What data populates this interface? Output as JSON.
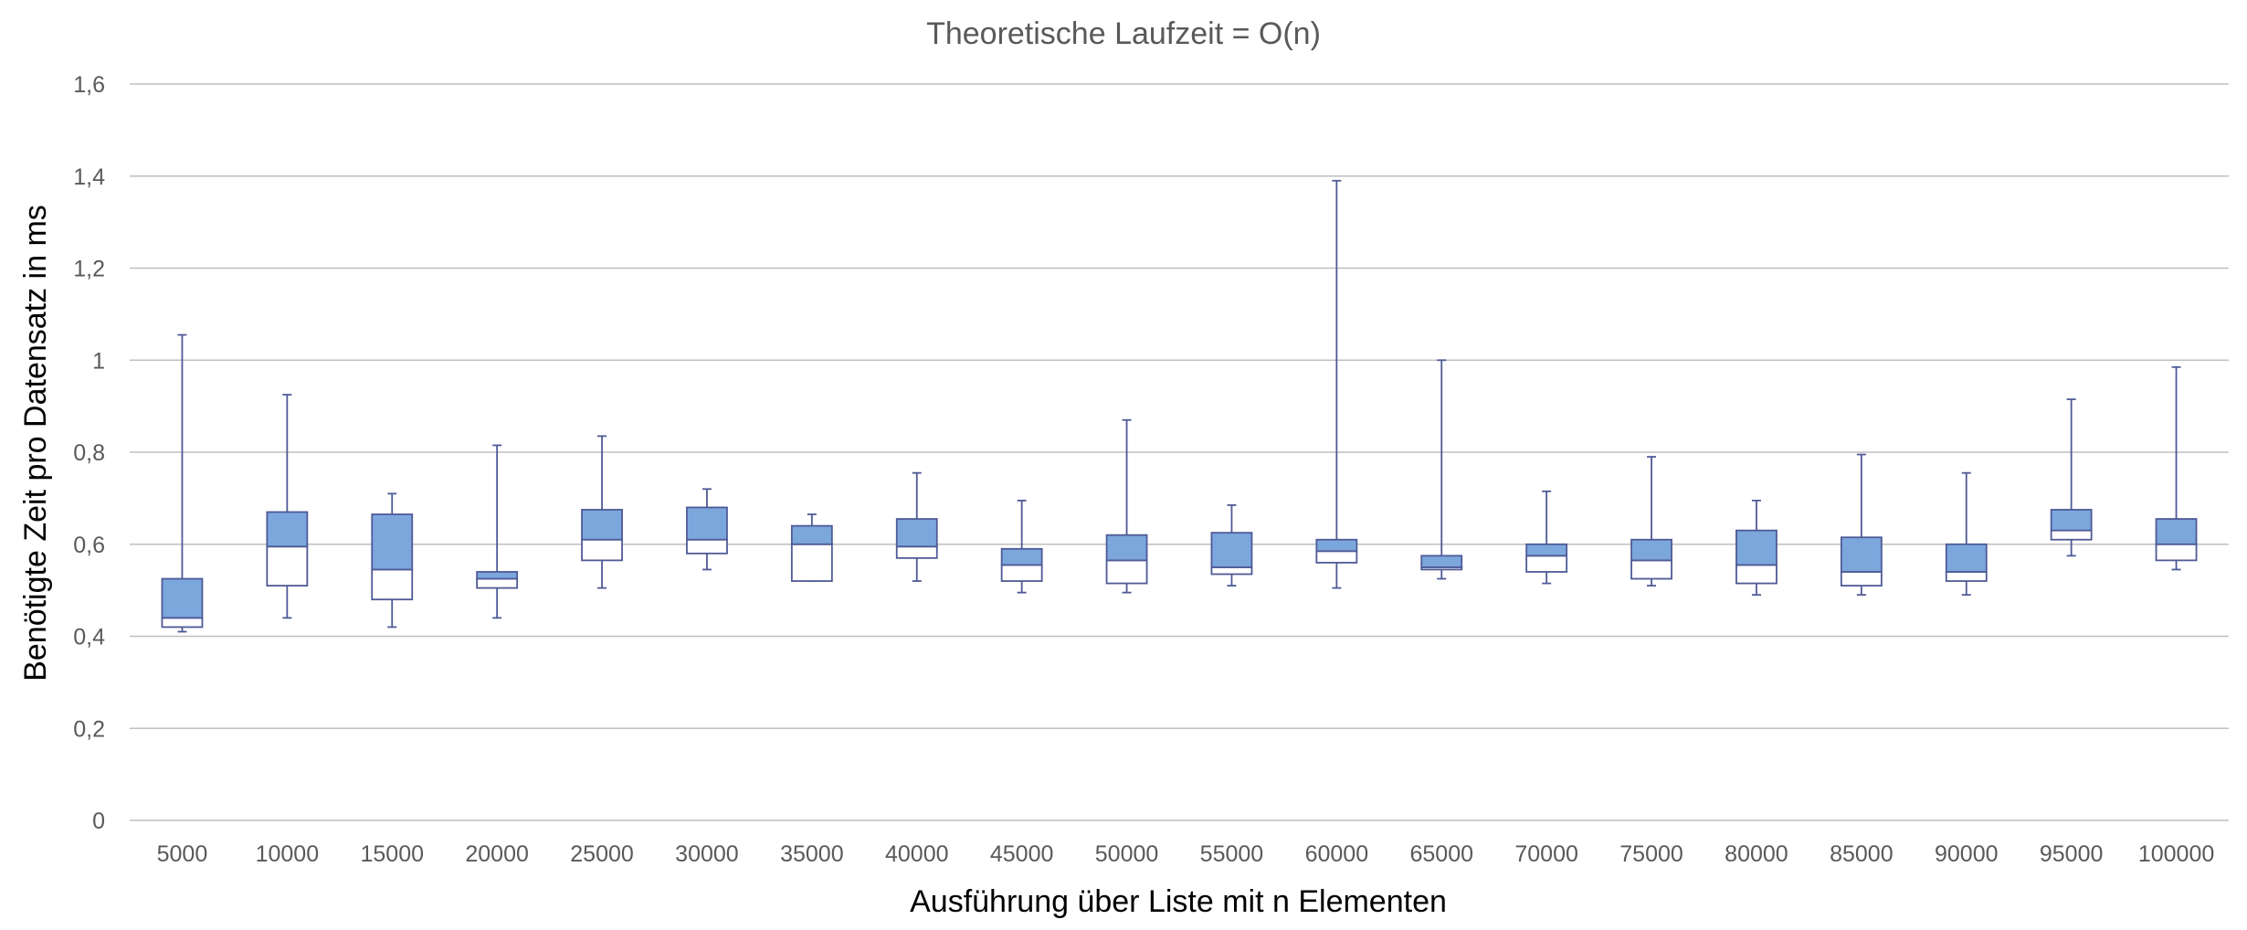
{
  "chart_data": {
    "type": "boxplot",
    "title": "Theoretische Laufzeit = O(n)",
    "xlabel": "Ausführung über Liste mit n Elementen",
    "ylabel": "Benötigte Zeit pro Datensatz in ms",
    "ylim": [
      0,
      1.6
    ],
    "yticks": [
      "0",
      "0,2",
      "0,4",
      "0,6",
      "0,8",
      "1",
      "1,2",
      "1,4",
      "1,6"
    ],
    "ytick_values": [
      0,
      0.2,
      0.4,
      0.6,
      0.8,
      1.0,
      1.2,
      1.4,
      1.6
    ],
    "grid": true,
    "colors": {
      "upper_box": "#7ba7dd",
      "lower_box": "#ffffff",
      "line": "#4f5a96",
      "grid": "#bfbfbf"
    },
    "categories": [
      "5000",
      "10000",
      "15000",
      "20000",
      "25000",
      "30000",
      "35000",
      "40000",
      "45000",
      "50000",
      "55000",
      "60000",
      "65000",
      "70000",
      "75000",
      "80000",
      "85000",
      "90000",
      "95000",
      "100000"
    ],
    "boxes": [
      {
        "min": 0.41,
        "q1": 0.42,
        "median": 0.44,
        "q3": 0.525,
        "max": 1.055
      },
      {
        "min": 0.44,
        "q1": 0.51,
        "median": 0.595,
        "q3": 0.67,
        "max": 0.925
      },
      {
        "min": 0.42,
        "q1": 0.48,
        "median": 0.545,
        "q3": 0.665,
        "max": 0.71
      },
      {
        "min": 0.44,
        "q1": 0.505,
        "median": 0.525,
        "q3": 0.54,
        "max": 0.815
      },
      {
        "min": 0.505,
        "q1": 0.565,
        "median": 0.61,
        "q3": 0.675,
        "max": 0.835
      },
      {
        "min": 0.545,
        "q1": 0.58,
        "median": 0.61,
        "q3": 0.68,
        "max": 0.72
      },
      {
        "min": 0.52,
        "q1": 0.52,
        "median": 0.6,
        "q3": 0.64,
        "max": 0.665
      },
      {
        "min": 0.52,
        "q1": 0.57,
        "median": 0.595,
        "q3": 0.655,
        "max": 0.755
      },
      {
        "min": 0.495,
        "q1": 0.52,
        "median": 0.555,
        "q3": 0.59,
        "max": 0.695
      },
      {
        "min": 0.495,
        "q1": 0.515,
        "median": 0.565,
        "q3": 0.62,
        "max": 0.87
      },
      {
        "min": 0.51,
        "q1": 0.535,
        "median": 0.55,
        "q3": 0.625,
        "max": 0.685
      },
      {
        "min": 0.505,
        "q1": 0.56,
        "median": 0.585,
        "q3": 0.61,
        "max": 1.39
      },
      {
        "min": 0.525,
        "q1": 0.545,
        "median": 0.55,
        "q3": 0.575,
        "max": 1.0
      },
      {
        "min": 0.515,
        "q1": 0.54,
        "median": 0.575,
        "q3": 0.6,
        "max": 0.715
      },
      {
        "min": 0.51,
        "q1": 0.525,
        "median": 0.565,
        "q3": 0.61,
        "max": 0.79
      },
      {
        "min": 0.49,
        "q1": 0.515,
        "median": 0.555,
        "q3": 0.63,
        "max": 0.695
      },
      {
        "min": 0.49,
        "q1": 0.51,
        "median": 0.54,
        "q3": 0.615,
        "max": 0.795
      },
      {
        "min": 0.49,
        "q1": 0.52,
        "median": 0.54,
        "q3": 0.6,
        "max": 0.755
      },
      {
        "min": 0.575,
        "q1": 0.61,
        "median": 0.63,
        "q3": 0.675,
        "max": 0.915
      },
      {
        "min": 0.545,
        "q1": 0.565,
        "median": 0.6,
        "q3": 0.655,
        "max": 0.985
      }
    ]
  }
}
